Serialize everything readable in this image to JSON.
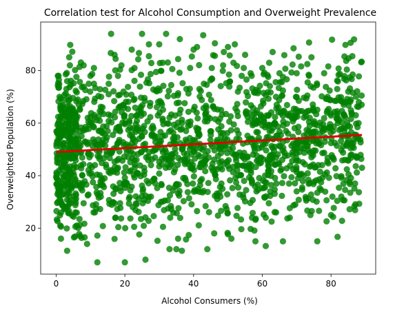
{
  "chart_data": {
    "type": "scatter",
    "title": "Correlation test for Alcohol Consumption and Overweight Prevalence",
    "xlabel": "Alcohol Consumers (%)",
    "ylabel": "Overweighted Population (%)",
    "xlim": [
      -4.5,
      93
    ],
    "ylim": [
      2.5,
      98.5
    ],
    "xticks": [
      0,
      20,
      40,
      60,
      80
    ],
    "yticks": [
      20,
      40,
      60,
      80
    ],
    "grid": false,
    "point_color": "#008000",
    "point_count_approx": 1800,
    "x_range": [
      0,
      89
    ],
    "y_range": [
      7,
      94
    ],
    "points_sample": [
      [
        0.5,
        78
      ],
      [
        1,
        70
      ],
      [
        1.5,
        58
      ],
      [
        2,
        46
      ],
      [
        0.8,
        35
      ],
      [
        1,
        31
      ],
      [
        1.2,
        21
      ],
      [
        3,
        73
      ],
      [
        4,
        82
      ],
      [
        5,
        65
      ],
      [
        6,
        21
      ],
      [
        7,
        17
      ],
      [
        8,
        82
      ],
      [
        9,
        14
      ],
      [
        10,
        78
      ],
      [
        12,
        7
      ],
      [
        13,
        32
      ],
      [
        15,
        57
      ],
      [
        16,
        94
      ],
      [
        17,
        86
      ],
      [
        18,
        78
      ],
      [
        19,
        82
      ],
      [
        20,
        7
      ],
      [
        21,
        47
      ],
      [
        22,
        88
      ],
      [
        23,
        53
      ],
      [
        25,
        94
      ],
      [
        26,
        8
      ],
      [
        27,
        90
      ],
      [
        28,
        38
      ],
      [
        30,
        90
      ],
      [
        31,
        83
      ],
      [
        32,
        94
      ],
      [
        33,
        12
      ],
      [
        35,
        12
      ],
      [
        36,
        92
      ],
      [
        38,
        53
      ],
      [
        39,
        81
      ],
      [
        40,
        88
      ],
      [
        41,
        89
      ],
      [
        42,
        38
      ],
      [
        43,
        75
      ],
      [
        44,
        12
      ],
      [
        46,
        18
      ],
      [
        48,
        65
      ],
      [
        50,
        89
      ],
      [
        51,
        16
      ],
      [
        52,
        90
      ],
      [
        54,
        78
      ],
      [
        55,
        86
      ],
      [
        57,
        24
      ],
      [
        58,
        15
      ],
      [
        60,
        81
      ],
      [
        61,
        24
      ],
      [
        62,
        83
      ],
      [
        63,
        45
      ],
      [
        64,
        70
      ],
      [
        65,
        79
      ],
      [
        66,
        15
      ],
      [
        68,
        24
      ],
      [
        70,
        79
      ],
      [
        72,
        40
      ],
      [
        74,
        25
      ],
      [
        75,
        60
      ],
      [
        76,
        15
      ],
      [
        78,
        79
      ],
      [
        79,
        70
      ],
      [
        80,
        25
      ],
      [
        82,
        60
      ],
      [
        83,
        32
      ],
      [
        85,
        72
      ],
      [
        86,
        48
      ],
      [
        87,
        37
      ],
      [
        88,
        60
      ],
      [
        89,
        43
      ]
    ],
    "regression_line": {
      "color": "#e00000",
      "points": [
        [
          0,
          49
        ],
        [
          89,
          55.5
        ]
      ]
    }
  }
}
